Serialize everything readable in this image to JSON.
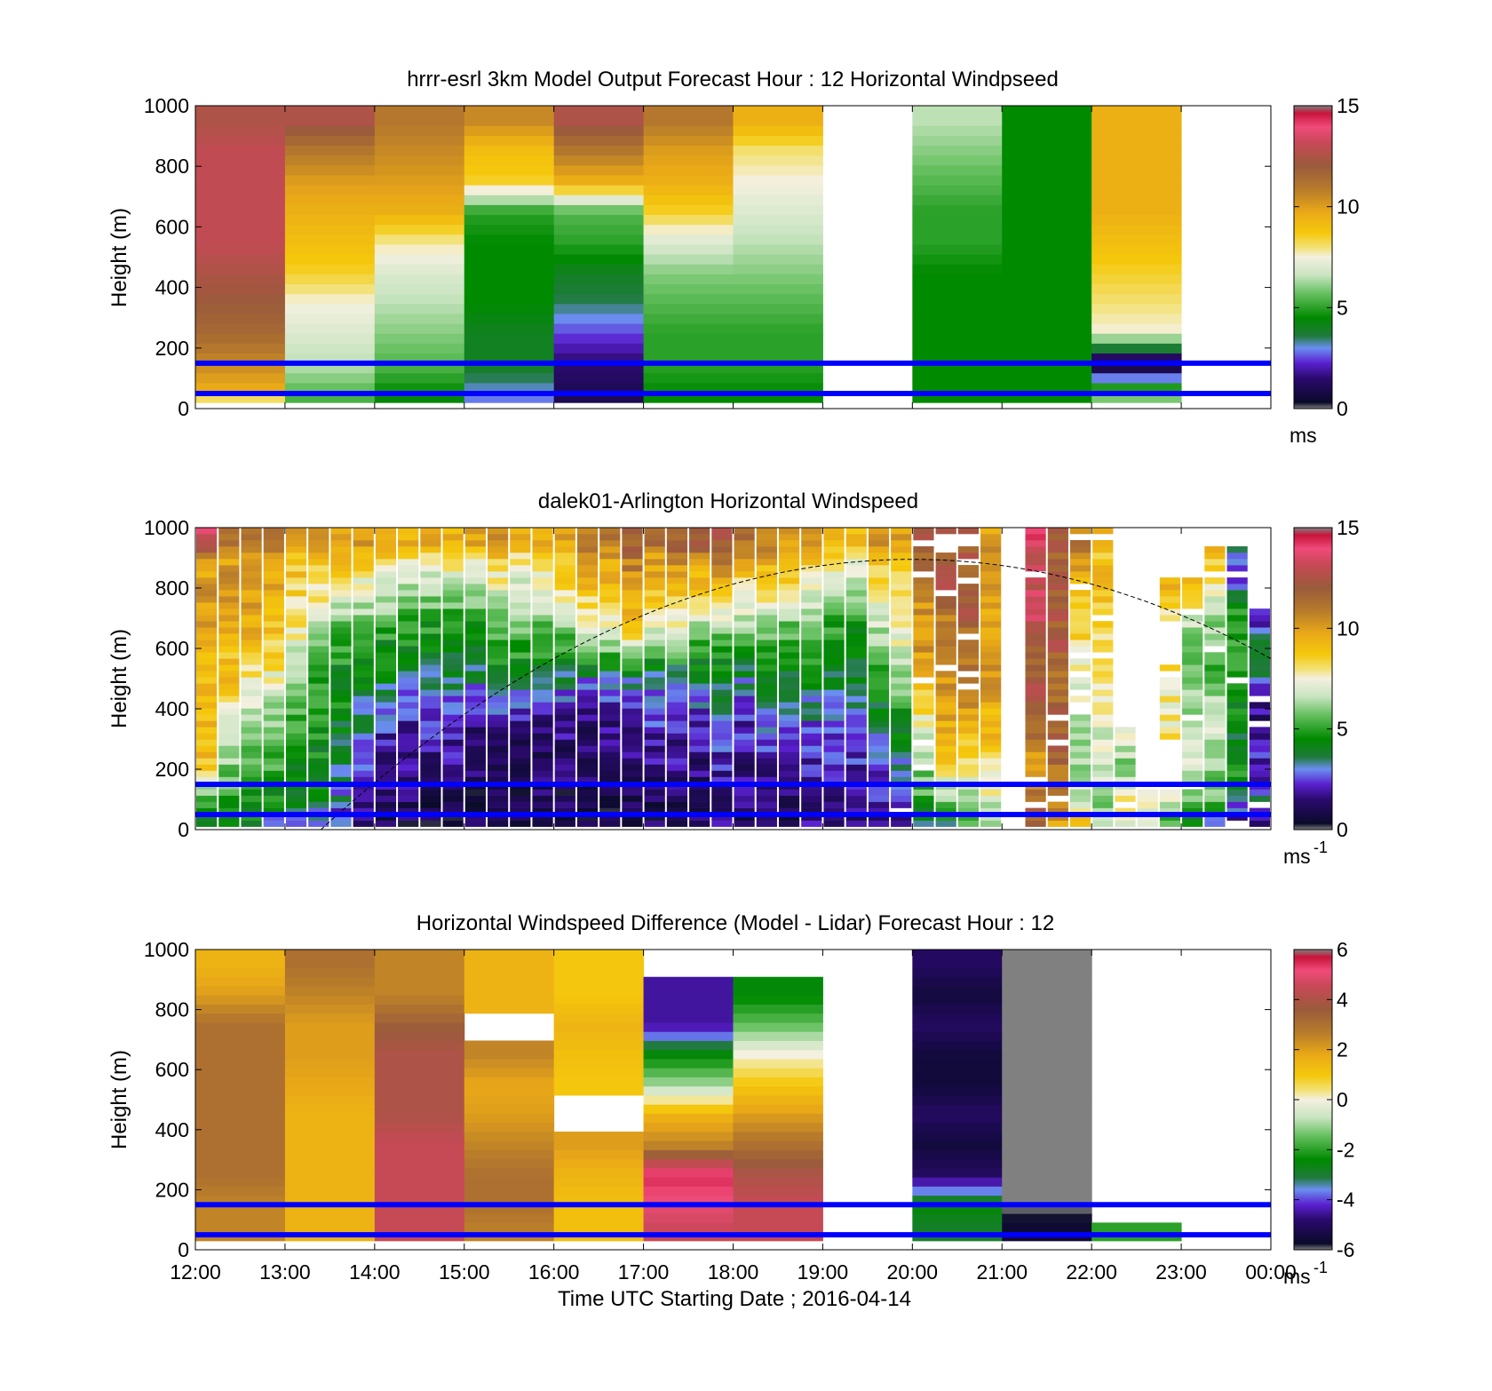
{
  "figure": {
    "common_xaxis": {
      "tick_labels": [
        "12:00",
        "13:00",
        "14:00",
        "15:00",
        "16:00",
        "17:00",
        "18:00",
        "19:00",
        "20:00",
        "21:00",
        "22:00",
        "23:00",
        "00:00"
      ],
      "xlabel": "Time UTC  Starting Date ; 2016-04-14"
    },
    "reference_lines": {
      "heights_m": [
        50,
        150
      ],
      "color": "#0000ff"
    }
  },
  "chart_data": [
    {
      "type": "heatmap",
      "title": "hrrr-esrl 3km Model Output   Forecast Hour : 12 Horizontal Windpseed",
      "ylabel": "Height (m)",
      "ylim": [
        0,
        1000
      ],
      "yticks": [
        0,
        200,
        400,
        600,
        800,
        1000
      ],
      "colorbar": {
        "min": 0,
        "max": 15,
        "ticks": [
          0,
          5,
          10,
          15
        ],
        "unit": "ms",
        "unit_sup": ""
      },
      "x_hours": [
        "12:00",
        "13:00",
        "14:00",
        "15:00",
        "16:00",
        "17:00",
        "18:00",
        "19:00",
        "20:00",
        "21:00",
        "22:00",
        "23:00"
      ],
      "heights_m": [
        0,
        50,
        150,
        250,
        350,
        450,
        550,
        650,
        750,
        850,
        950
      ],
      "values_ms": [
        [
          4.5,
          9.5,
          10.5,
          11.5,
          12.0,
          12.5,
          13.0,
          13.0,
          13.0,
          13.0,
          12.5
        ],
        [
          5.0,
          5.5,
          6.5,
          7.0,
          7.5,
          8.5,
          9.0,
          9.5,
          10.0,
          11.0,
          12.5
        ],
        [
          4.0,
          4.5,
          5.5,
          6.0,
          6.5,
          7.0,
          7.8,
          9.5,
          10.0,
          10.5,
          11.0
        ],
        [
          2.5,
          3.0,
          4.0,
          4.0,
          4.5,
          4.5,
          4.5,
          5.0,
          8.5,
          9.0,
          10.5
        ],
        [
          1.0,
          1.0,
          1.5,
          2.5,
          3.5,
          4.0,
          5.0,
          5.5,
          9.5,
          11.0,
          12.5
        ],
        [
          4.5,
          4.5,
          5.0,
          5.0,
          5.5,
          6.0,
          7.0,
          8.5,
          9.5,
          10.0,
          11.0
        ],
        [
          4.5,
          4.5,
          5.0,
          5.0,
          5.5,
          6.0,
          6.5,
          7.0,
          7.5,
          8.0,
          9.5
        ],
        [
          null,
          null,
          null,
          null,
          null,
          null,
          null,
          null,
          null,
          null,
          null
        ],
        [
          4.5,
          4.5,
          4.5,
          4.5,
          4.5,
          4.5,
          5.0,
          5.0,
          5.5,
          6.0,
          6.5
        ],
        [
          4.5,
          4.5,
          4.5,
          4.5,
          4.5,
          4.5,
          4.5,
          4.5,
          4.5,
          4.5,
          4.5
        ],
        [
          5.5,
          6.0,
          0.0,
          7.5,
          8.0,
          8.5,
          9.0,
          9.5,
          9.5,
          9.5,
          9.5
        ],
        [
          null,
          null,
          null,
          null,
          null,
          null,
          null,
          null,
          null,
          null,
          null
        ]
      ]
    },
    {
      "type": "heatmap",
      "title": "dalek01-Arlington  Horizontal Windspeed",
      "ylabel": "Height (m)",
      "ylim": [
        0,
        1000
      ],
      "yticks": [
        0,
        200,
        400,
        600,
        800,
        1000
      ],
      "colorbar": {
        "min": 0,
        "max": 15,
        "ticks": [
          0,
          5,
          10,
          15
        ],
        "unit": "ms",
        "unit_sup": "-1"
      },
      "columns_per_hour": 4,
      "x_hours": [
        "12:00",
        "13:00",
        "14:00",
        "15:00",
        "16:00",
        "17:00",
        "18:00",
        "19:00",
        "20:00",
        "21:00",
        "22:00",
        "23:00"
      ],
      "profile_heights_m": [
        30,
        100,
        200,
        300,
        400,
        500,
        600,
        700,
        800,
        900,
        950
      ],
      "profiles_ms": [
        [
          4,
          5,
          9,
          9,
          9,
          9,
          9.5,
          10,
          10,
          10,
          13
        ],
        [
          4,
          5,
          6,
          7,
          8,
          9,
          9,
          9.5,
          10,
          10,
          11
        ],
        [
          4,
          5,
          5,
          6,
          7,
          8,
          9,
          9.5,
          10,
          10,
          11
        ],
        [
          3,
          4.5,
          5,
          6,
          6.5,
          7.5,
          8.5,
          9,
          9.5,
          10,
          11
        ],
        [
          3,
          4,
          4.5,
          5,
          5.5,
          6,
          7,
          8,
          8.5,
          9,
          10
        ],
        [
          3,
          4,
          4.5,
          4.5,
          5,
          5,
          6,
          7,
          8,
          9,
          10
        ],
        [
          2.5,
          3,
          3.5,
          4,
          4.5,
          4.5,
          5,
          6,
          7.5,
          9,
          10
        ],
        [
          1.5,
          2,
          2.5,
          3,
          3.5,
          4.5,
          5,
          6,
          7,
          9,
          10
        ],
        [
          1,
          1.5,
          1.5,
          2,
          3,
          4,
          4.5,
          5.5,
          7,
          8.5,
          9.5
        ],
        [
          1,
          1.5,
          1.5,
          2,
          2.5,
          3.5,
          4.5,
          5,
          6.5,
          8,
          9.5
        ],
        [
          1,
          1,
          1.5,
          2,
          2.5,
          3.5,
          4.5,
          5,
          6.5,
          8,
          9.5
        ],
        [
          1,
          1,
          1.5,
          2,
          2.5,
          3.5,
          4.5,
          5,
          6.5,
          8,
          9.5
        ],
        [
          1,
          1,
          1.2,
          1.5,
          2,
          3.5,
          4.5,
          5,
          6.5,
          8,
          9.5
        ],
        [
          1,
          1,
          1.2,
          1.5,
          2.5,
          4,
          5,
          6,
          7,
          9,
          10
        ],
        [
          1,
          1,
          1.2,
          1.5,
          2.5,
          4,
          5,
          6,
          7,
          8,
          9.5
        ],
        [
          1,
          1,
          1.2,
          1.5,
          2,
          4,
          5,
          6,
          7,
          8,
          9.5
        ],
        [
          1,
          1,
          1.2,
          1.5,
          2,
          3.5,
          5,
          6.5,
          8,
          9,
          10
        ],
        [
          1,
          1,
          1,
          1.2,
          2,
          3,
          6,
          7.5,
          9,
          10.5,
          11
        ],
        [
          1,
          1,
          1.2,
          1.5,
          2,
          3.5,
          6,
          8,
          9,
          10,
          11
        ],
        [
          1,
          1,
          1.2,
          1.5,
          2,
          3.5,
          7,
          9,
          10,
          11,
          12
        ],
        [
          1,
          1,
          1.5,
          2,
          2.5,
          3.5,
          5.5,
          7.5,
          9,
          10,
          11
        ],
        [
          1,
          1,
          1.5,
          2,
          2.5,
          3,
          6,
          7.5,
          9,
          10.5,
          12
        ],
        [
          1,
          1,
          1.5,
          2,
          2.5,
          3.5,
          5,
          7,
          9,
          10,
          12
        ],
        [
          1.5,
          1.5,
          2,
          2.5,
          3,
          4,
          5,
          7,
          9,
          11,
          12
        ],
        [
          1,
          1.5,
          1.5,
          2,
          2.5,
          3.5,
          5,
          6.5,
          8,
          10,
          11
        ],
        [
          1.5,
          1.5,
          2,
          2.5,
          3,
          4,
          5,
          6.5,
          8,
          10,
          11
        ],
        [
          1,
          1.5,
          2,
          2.5,
          3,
          4,
          5,
          6,
          8,
          9,
          10
        ],
        [
          1.5,
          1.5,
          2,
          2.5,
          3,
          4,
          5,
          6,
          7.5,
          9,
          10
        ],
        [
          1.5,
          1.5,
          2,
          2.5,
          3,
          4,
          4.5,
          5,
          7,
          8.5,
          9.5
        ],
        [
          1.5,
          1.5,
          2,
          2.5,
          3,
          4,
          4.5,
          5,
          6.5,
          8,
          9
        ],
        [
          1.5,
          2,
          2.5,
          3,
          4,
          5,
          6,
          7,
          8,
          9,
          10
        ],
        [
          1.5,
          2,
          3,
          4,
          5,
          6,
          7,
          8,
          8.5,
          9,
          10
        ],
        [
          4,
          5,
          6,
          7,
          8,
          9,
          10,
          10,
          11,
          11,
          12
        ],
        [
          4,
          6,
          8,
          9,
          10,
          10,
          11,
          11,
          12,
          12,
          12
        ],
        [
          5,
          6,
          8,
          9,
          10,
          11,
          11,
          12,
          12,
          12,
          12
        ],
        [
          6,
          7,
          8,
          9,
          9.5,
          10,
          10,
          10,
          10,
          11,
          10
        ],
        [
          null,
          null,
          null,
          null,
          null,
          null,
          null,
          null,
          null,
          null,
          null
        ],
        [
          12,
          11,
          10,
          11,
          12,
          12,
          12,
          13,
          13,
          13,
          14
        ],
        [
          10,
          11,
          11,
          12,
          12,
          11,
          12,
          12,
          12,
          12,
          12
        ],
        [
          9,
          7,
          6,
          6.5,
          7,
          7.5,
          8,
          9,
          9,
          10,
          11
        ],
        [
          7,
          6,
          7,
          7,
          7.5,
          8,
          8,
          8.5,
          9,
          9,
          9
        ],
        [
          7,
          8,
          6,
          7,
          null,
          null,
          null,
          null,
          null,
          null,
          null
        ],
        [
          7,
          8,
          null,
          null,
          null,
          null,
          null,
          null,
          null,
          null,
          null
        ],
        [
          5,
          7,
          null,
          8,
          7.5,
          8,
          null,
          8,
          9,
          null,
          null
        ],
        [
          4,
          6,
          7,
          7,
          6.5,
          6,
          5,
          7,
          9,
          null,
          null
        ],
        [
          3,
          6,
          6,
          6.5,
          7,
          5,
          6,
          6,
          8,
          9,
          null
        ],
        [
          2,
          3,
          5,
          4,
          4.5,
          5,
          5.5,
          5,
          3,
          3,
          null
        ],
        [
          2,
          3,
          2,
          2,
          1.5,
          3,
          4,
          2,
          null,
          null,
          null
        ]
      ]
    },
    {
      "type": "heatmap",
      "title": "Horizontal Windspeed Difference (Model - Lidar) Forecast Hour : 12",
      "ylabel": "Height (m)",
      "ylim": [
        0,
        1000
      ],
      "yticks": [
        0,
        200,
        400,
        600,
        800,
        1000
      ],
      "colorbar": {
        "min": -6,
        "max": 6,
        "ticks": [
          -6,
          -4,
          -2,
          0,
          2,
          4,
          6
        ],
        "unit": "ms",
        "unit_sup": "-1"
      },
      "x_hours": [
        "12:00",
        "13:00",
        "14:00",
        "15:00",
        "16:00",
        "17:00",
        "18:00",
        "19:00",
        "20:00",
        "21:00",
        "22:00",
        "23:00"
      ],
      "heights_m": [
        50,
        150,
        250,
        350,
        450,
        550,
        650,
        750,
        850,
        950
      ],
      "values_ms": [
        [
          2.5,
          2.5,
          3.0,
          3.0,
          3.0,
          3.0,
          3.0,
          3.0,
          2.0,
          1.5
        ],
        [
          1.5,
          1.5,
          1.5,
          1.5,
          1.5,
          1.8,
          2.0,
          2.0,
          2.5,
          3.0
        ],
        [
          4.5,
          4.5,
          4.5,
          4.5,
          4.0,
          4.0,
          4.0,
          3.5,
          2.5,
          2.5
        ],
        [
          2.5,
          3.0,
          3.0,
          2.5,
          2.0,
          1.8,
          2.5,
          null,
          1.5,
          1.5
        ],
        [
          1.2,
          1.2,
          1.5,
          2.0,
          null,
          1.0,
          1.2,
          1.5,
          1.0,
          1.0
        ],
        [
          4.5,
          5.0,
          5.5,
          2.5,
          1.5,
          -1.0,
          -2.5,
          -4.5,
          -4.5,
          null
        ],
        [
          4.5,
          4.5,
          4.0,
          3.0,
          2.0,
          1.0,
          0.0,
          -1.5,
          -2.5,
          null
        ],
        [
          null,
          null,
          null,
          null,
          null,
          null,
          null,
          null,
          null,
          null
        ],
        [
          -3.0,
          -2.5,
          -5.0,
          -5.5,
          -5.0,
          -5.5,
          -5.5,
          -5.0,
          -5.5,
          -5.0
        ],
        [
          -5.5,
          -6.0,
          -6.0,
          -6.0,
          -6.0,
          -6.0,
          -6.0,
          -6.0,
          -6.0,
          -6.0
        ],
        [
          -2.0,
          null,
          null,
          null,
          null,
          null,
          null,
          null,
          null,
          null
        ],
        [
          null,
          null,
          null,
          null,
          null,
          null,
          null,
          null,
          null,
          null
        ]
      ]
    }
  ]
}
